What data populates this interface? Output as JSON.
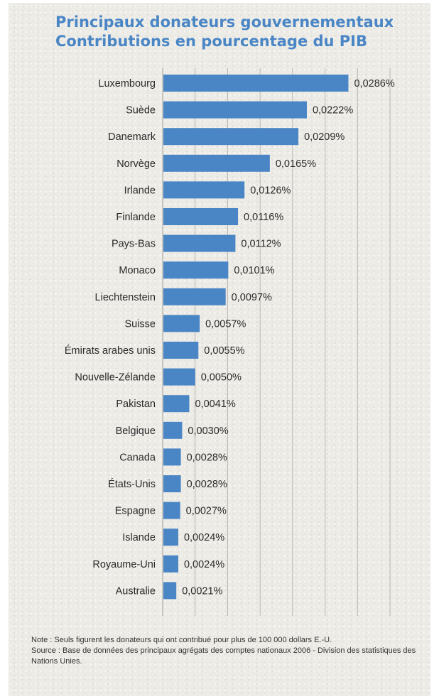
{
  "chart_data": {
    "type": "bar",
    "orientation": "horizontal",
    "title": "Principaux donateurs gouvernementaux",
    "subtitle": "Contributions en pourcentage du PIB",
    "categories": [
      "Luxembourg",
      "Suède",
      "Danemark",
      "Norvège",
      "Irlande",
      "Finlande",
      "Pays-Bas",
      "Monaco",
      "Liechtenstein",
      "Suisse",
      "Émirats arabes unis",
      "Nouvelle-Zélande",
      "Pakistan",
      "Belgique",
      "Canada",
      "États-Unis",
      "Espagne",
      "Islande",
      "Royaume-Uni",
      "Australie"
    ],
    "values": [
      0.0286,
      0.0222,
      0.0209,
      0.0165,
      0.0126,
      0.0116,
      0.0112,
      0.0101,
      0.0097,
      0.0057,
      0.0055,
      0.005,
      0.0041,
      0.003,
      0.0028,
      0.0028,
      0.0027,
      0.0024,
      0.0024,
      0.0021
    ],
    "value_labels": [
      "0,0286%",
      "0,0222%",
      "0,0209%",
      "0,0165%",
      "0,0126%",
      "0,0116%",
      "0,0112%",
      "0,0101%",
      "0,0097%",
      "0,0057%",
      "0,0055%",
      "0,0050%",
      "0,0041%",
      "0,0030%",
      "0,0028%",
      "0,0028%",
      "0,0027%",
      "0,0024%",
      "0,0024%",
      "0,0021%"
    ],
    "xlim": [
      0,
      0.035
    ],
    "grid": true,
    "bar_color": "#4a86c5",
    "grid_color": "#b9b7b1"
  },
  "footer": {
    "note": "Note : Seuls figurent les donateurs qui ont contribué pour plus de 100 000 dollars E.-U.",
    "source": "Source : Base de données des principaux agrégats des comptes nationaux 2006 - Division des statistiques des Nations Unies."
  }
}
